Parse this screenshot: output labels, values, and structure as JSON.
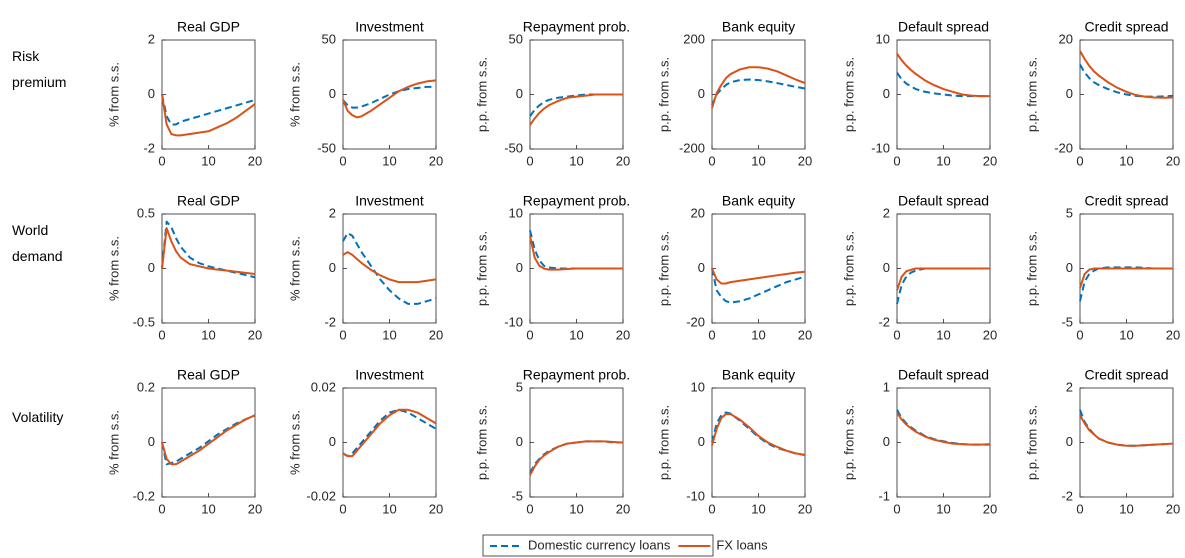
{
  "row_labels": [
    [
      "Risk",
      "premium"
    ],
    [
      "World",
      "demand"
    ],
    [
      "Volatility"
    ]
  ],
  "legend": [
    {
      "name": "Domestic currency loans",
      "color": "#0072bd",
      "dash": true
    },
    {
      "name": "FX loans",
      "color": "#d95319",
      "dash": false
    }
  ],
  "chart_data": [
    {
      "type": "line",
      "title": "Real GDP",
      "ylabel": "% from s.s.",
      "x": [
        0,
        1,
        2,
        3,
        4,
        6,
        8,
        10,
        12,
        14,
        16,
        18,
        20
      ],
      "xlim": [
        0,
        20
      ],
      "xticks": [
        0,
        10,
        20
      ],
      "ylim": [
        -2,
        2
      ],
      "yticks": [
        -2,
        0,
        2
      ],
      "series": [
        {
          "values": [
            0,
            -0.8,
            -1.1,
            -1.1,
            -1.0,
            -0.9,
            -0.8,
            -0.7,
            -0.6,
            -0.5,
            -0.4,
            -0.3,
            -0.2
          ]
        },
        {
          "values": [
            0,
            -1.1,
            -1.45,
            -1.5,
            -1.5,
            -1.45,
            -1.4,
            -1.35,
            -1.2,
            -1.05,
            -0.85,
            -0.6,
            -0.35
          ]
        }
      ]
    },
    {
      "type": "line",
      "title": "Investment",
      "ylabel": "% from s.s.",
      "x": [
        0,
        1,
        2,
        3,
        4,
        6,
        8,
        10,
        12,
        14,
        16,
        18,
        20
      ],
      "xlim": [
        0,
        20
      ],
      "xticks": [
        0,
        10,
        20
      ],
      "ylim": [
        -50,
        50
      ],
      "yticks": [
        -50,
        0,
        50
      ],
      "series": [
        {
          "values": [
            -5,
            -10,
            -12,
            -12,
            -11,
            -8,
            -4,
            0,
            3,
            5,
            6,
            7,
            7
          ]
        },
        {
          "values": [
            -5,
            -15,
            -19,
            -21,
            -20,
            -15,
            -9,
            -3,
            3,
            7,
            10,
            12,
            13
          ]
        }
      ]
    },
    {
      "type": "line",
      "title": "Repayment prob.",
      "ylabel": "p.p. from s.s.",
      "x": [
        0,
        1,
        2,
        3,
        4,
        6,
        8,
        10,
        12,
        14,
        16,
        18,
        20
      ],
      "xlim": [
        0,
        20
      ],
      "xticks": [
        0,
        10,
        20
      ],
      "ylim": [
        -50,
        50
      ],
      "yticks": [
        -50,
        0,
        50
      ],
      "series": [
        {
          "values": [
            -20,
            -14,
            -10,
            -7,
            -5,
            -3,
            -2,
            -1,
            0,
            0,
            0,
            0,
            0
          ]
        },
        {
          "values": [
            -28,
            -22,
            -17,
            -13,
            -10,
            -6,
            -3,
            -2,
            -1,
            0,
            0,
            0,
            0
          ]
        }
      ]
    },
    {
      "type": "line",
      "title": "Bank equity",
      "ylabel": "p.p. from s.s.",
      "x": [
        0,
        1,
        2,
        3,
        4,
        6,
        8,
        10,
        12,
        14,
        16,
        18,
        20
      ],
      "xlim": [
        0,
        20
      ],
      "xticks": [
        0,
        10,
        20
      ],
      "ylim": [
        -200,
        200
      ],
      "yticks": [
        -200,
        0,
        200
      ],
      "series": [
        {
          "values": [
            -40,
            0,
            20,
            35,
            45,
            53,
            55,
            53,
            48,
            42,
            35,
            28,
            22
          ]
        },
        {
          "values": [
            -50,
            5,
            35,
            60,
            75,
            92,
            100,
            100,
            95,
            85,
            70,
            55,
            42
          ]
        }
      ]
    },
    {
      "type": "line",
      "title": "Default spread",
      "ylabel": "p.p. from s.s.",
      "x": [
        0,
        1,
        2,
        3,
        4,
        6,
        8,
        10,
        12,
        14,
        16,
        18,
        20
      ],
      "xlim": [
        0,
        20
      ],
      "xticks": [
        0,
        10,
        20
      ],
      "ylim": [
        -10,
        10
      ],
      "yticks": [
        -10,
        0,
        10
      ],
      "series": [
        {
          "values": [
            4,
            2.8,
            2,
            1.5,
            1,
            0.5,
            0.2,
            0,
            -0.2,
            -0.3,
            -0.3,
            -0.3,
            -0.3
          ]
        },
        {
          "values": [
            7.5,
            6.3,
            5.3,
            4.5,
            3.8,
            2.6,
            1.7,
            1,
            0.5,
            0,
            -0.2,
            -0.3,
            -0.3
          ]
        }
      ]
    },
    {
      "type": "line",
      "title": "Credit spread",
      "ylabel": "p.p. from s.s.",
      "x": [
        0,
        1,
        2,
        3,
        4,
        6,
        8,
        10,
        12,
        14,
        16,
        18,
        20
      ],
      "xlim": [
        0,
        20
      ],
      "xticks": [
        0,
        10,
        20
      ],
      "ylim": [
        -20,
        20
      ],
      "yticks": [
        -20,
        0,
        20
      ],
      "series": [
        {
          "values": [
            11,
            8,
            6,
            4.5,
            3.5,
            2,
            0.8,
            0,
            -0.5,
            -0.8,
            -0.8,
            -0.7,
            -0.5
          ]
        },
        {
          "values": [
            16,
            13,
            10.5,
            8.5,
            7,
            4.5,
            2.5,
            1,
            -0.2,
            -0.8,
            -1.1,
            -1.2,
            -1.1
          ]
        }
      ]
    },
    {
      "type": "line",
      "title": "Real GDP",
      "ylabel": "% from s.s.",
      "x": [
        0,
        1,
        2,
        3,
        4,
        6,
        8,
        10,
        12,
        14,
        16,
        18,
        20
      ],
      "xlim": [
        0,
        20
      ],
      "xticks": [
        0,
        10,
        20
      ],
      "ylim": [
        -0.5,
        0.5
      ],
      "yticks": [
        -0.5,
        0,
        0.5
      ],
      "series": [
        {
          "values": [
            0,
            0.43,
            0.38,
            0.28,
            0.2,
            0.1,
            0.05,
            0.02,
            0,
            -0.02,
            -0.04,
            -0.06,
            -0.08
          ]
        },
        {
          "values": [
            0,
            0.37,
            0.25,
            0.16,
            0.1,
            0.04,
            0.02,
            0,
            -0.01,
            -0.02,
            -0.03,
            -0.04,
            -0.05
          ]
        }
      ]
    },
    {
      "type": "line",
      "title": "Investment",
      "ylabel": "% from s.s.",
      "x": [
        0,
        1,
        2,
        3,
        4,
        6,
        8,
        10,
        12,
        14,
        16,
        18,
        20
      ],
      "xlim": [
        0,
        20
      ],
      "xticks": [
        0,
        10,
        20
      ],
      "ylim": [
        -2,
        2
      ],
      "yticks": [
        -2,
        0,
        2
      ],
      "series": [
        {
          "values": [
            1,
            1.3,
            1.2,
            0.9,
            0.6,
            0.1,
            -0.4,
            -0.8,
            -1.1,
            -1.3,
            -1.3,
            -1.2,
            -1.1
          ]
        },
        {
          "values": [
            0.5,
            0.6,
            0.5,
            0.35,
            0.2,
            -0.05,
            -0.25,
            -0.4,
            -0.5,
            -0.5,
            -0.5,
            -0.45,
            -0.4
          ]
        }
      ]
    },
    {
      "type": "line",
      "title": "Repayment prob.",
      "ylabel": "p.p. from s.s.",
      "x": [
        0,
        1,
        2,
        3,
        4,
        6,
        8,
        10,
        12,
        14,
        16,
        18,
        20
      ],
      "xlim": [
        0,
        20
      ],
      "xticks": [
        0,
        10,
        20
      ],
      "ylim": [
        -10,
        10
      ],
      "yticks": [
        -10,
        0,
        10
      ],
      "series": [
        {
          "values": [
            7,
            3.5,
            1.5,
            0.5,
            0.2,
            0,
            0,
            0,
            0,
            0,
            0,
            0,
            0
          ]
        },
        {
          "values": [
            6,
            2,
            0.5,
            0,
            -0.2,
            -0.2,
            -0.1,
            0,
            0,
            0,
            0,
            0,
            0
          ]
        }
      ]
    },
    {
      "type": "line",
      "title": "Bank equity",
      "ylabel": "p.p. from s.s.",
      "x": [
        0,
        1,
        2,
        3,
        4,
        6,
        8,
        10,
        12,
        14,
        16,
        18,
        20
      ],
      "xlim": [
        0,
        20
      ],
      "xticks": [
        0,
        10,
        20
      ],
      "ylim": [
        -20,
        20
      ],
      "yticks": [
        -20,
        0,
        20
      ],
      "series": [
        {
          "values": [
            0,
            -8,
            -10.5,
            -12,
            -12.5,
            -12,
            -11,
            -9.5,
            -8,
            -6.5,
            -5,
            -4,
            -3
          ]
        },
        {
          "values": [
            0,
            -4,
            -5.5,
            -5.5,
            -5,
            -4.5,
            -4,
            -3.5,
            -3,
            -2.5,
            -2,
            -1.5,
            -1.2
          ]
        }
      ]
    },
    {
      "type": "line",
      "title": "Default spread",
      "ylabel": "p.p. from s.s.",
      "x": [
        0,
        1,
        2,
        3,
        4,
        6,
        8,
        10,
        12,
        14,
        16,
        18,
        20
      ],
      "xlim": [
        0,
        20
      ],
      "xticks": [
        0,
        10,
        20
      ],
      "ylim": [
        -2,
        2
      ],
      "yticks": [
        -2,
        0,
        2
      ],
      "series": [
        {
          "values": [
            -1.3,
            -0.6,
            -0.3,
            -0.15,
            -0.08,
            0,
            0,
            0,
            0,
            0,
            0,
            0,
            0
          ]
        },
        {
          "values": [
            -0.8,
            -0.3,
            -0.1,
            -0.05,
            0,
            0,
            0,
            0,
            0,
            0,
            0,
            0,
            0
          ]
        }
      ]
    },
    {
      "type": "line",
      "title": "Credit spread",
      "ylabel": "p.p. from s.s.",
      "x": [
        0,
        1,
        2,
        3,
        4,
        6,
        8,
        10,
        12,
        14,
        16,
        18,
        20
      ],
      "xlim": [
        0,
        20
      ],
      "xticks": [
        0,
        10,
        20
      ],
      "ylim": [
        -5,
        5
      ],
      "yticks": [
        -5,
        0,
        5
      ],
      "series": [
        {
          "values": [
            -3,
            -1.2,
            -0.5,
            -0.2,
            0,
            0.1,
            0.1,
            0.1,
            0.1,
            0.05,
            0,
            0,
            0
          ]
        },
        {
          "values": [
            -1.8,
            -0.5,
            -0.1,
            0,
            0,
            0,
            0,
            0,
            0,
            0,
            0,
            0,
            0
          ]
        }
      ]
    },
    {
      "type": "line",
      "title": "Real GDP",
      "ylabel": "% from s.s.",
      "x": [
        0,
        1,
        2,
        3,
        4,
        6,
        8,
        10,
        12,
        14,
        16,
        18,
        20
      ],
      "xlim": [
        0,
        20
      ],
      "xticks": [
        0,
        10,
        20
      ],
      "ylim": [
        -0.2,
        0.2
      ],
      "yticks": [
        -0.2,
        0,
        0.2
      ],
      "series": [
        {
          "values": [
            0,
            -0.08,
            -0.075,
            -0.07,
            -0.06,
            -0.04,
            -0.02,
            0.005,
            0.03,
            0.05,
            0.07,
            0.085,
            0.1
          ]
        },
        {
          "values": [
            0,
            -0.06,
            -0.08,
            -0.08,
            -0.07,
            -0.05,
            -0.03,
            -0.005,
            0.02,
            0.045,
            0.065,
            0.085,
            0.1
          ]
        }
      ]
    },
    {
      "type": "line",
      "title": "Investment",
      "ylabel": "% from s.s.",
      "x": [
        0,
        1,
        2,
        3,
        4,
        6,
        8,
        10,
        12,
        14,
        16,
        18,
        20
      ],
      "xlim": [
        0,
        20
      ],
      "xticks": [
        0,
        10,
        20
      ],
      "ylim": [
        -0.02,
        0.02
      ],
      "yticks": [
        -0.02,
        0,
        0.02
      ],
      "series": [
        {
          "values": [
            -0.004,
            -0.005,
            -0.004,
            -0.002,
            0,
            0.004,
            0.008,
            0.011,
            0.012,
            0.011,
            0.009,
            0.007,
            0.005
          ]
        },
        {
          "values": [
            -0.004,
            -0.005,
            -0.005,
            -0.003,
            -0.001,
            0.003,
            0.007,
            0.01,
            0.012,
            0.012,
            0.011,
            0.009,
            0.007
          ]
        }
      ]
    },
    {
      "type": "line",
      "title": "Repayment prob.",
      "ylabel": "p.p. from s.s.",
      "x": [
        0,
        1,
        2,
        3,
        4,
        6,
        8,
        10,
        12,
        14,
        16,
        18,
        20
      ],
      "xlim": [
        0,
        20
      ],
      "xticks": [
        0,
        10,
        20
      ],
      "ylim": [
        -5,
        5
      ],
      "yticks": [
        -5,
        0,
        5
      ],
      "series": [
        {
          "values": [
            -2.8,
            -2,
            -1.5,
            -1.1,
            -0.8,
            -0.4,
            -0.1,
            0,
            0.1,
            0.1,
            0.1,
            0,
            0
          ]
        },
        {
          "values": [
            -3,
            -2.2,
            -1.6,
            -1.2,
            -0.9,
            -0.4,
            -0.1,
            0,
            0.1,
            0.1,
            0.1,
            0.05,
            0
          ]
        }
      ]
    },
    {
      "type": "line",
      "title": "Bank equity",
      "ylabel": "p.p. from s.s.",
      "x": [
        0,
        1,
        2,
        3,
        4,
        6,
        8,
        10,
        12,
        14,
        16,
        18,
        20
      ],
      "xlim": [
        0,
        20
      ],
      "xticks": [
        0,
        10,
        20
      ],
      "ylim": [
        -10,
        10
      ],
      "yticks": [
        -10,
        0,
        10
      ],
      "series": [
        {
          "values": [
            0,
            3.5,
            5,
            5.5,
            5.3,
            4,
            2.5,
            1,
            -0.2,
            -1,
            -1.5,
            -2,
            -2.3
          ]
        },
        {
          "values": [
            -0.5,
            2.5,
            4.5,
            5.2,
            5.2,
            4.2,
            2.8,
            1.2,
            0,
            -0.8,
            -1.5,
            -2,
            -2.3
          ]
        }
      ]
    },
    {
      "type": "line",
      "title": "Default spread",
      "ylabel": "p.p. from s.s.",
      "x": [
        0,
        1,
        2,
        3,
        4,
        6,
        8,
        10,
        12,
        14,
        16,
        18,
        20
      ],
      "xlim": [
        0,
        20
      ],
      "xticks": [
        0,
        10,
        20
      ],
      "ylim": [
        -1,
        1
      ],
      "yticks": [
        -1,
        0,
        1
      ],
      "series": [
        {
          "values": [
            0.6,
            0.45,
            0.35,
            0.28,
            0.22,
            0.12,
            0.06,
            0.02,
            -0.01,
            -0.03,
            -0.04,
            -0.04,
            -0.04
          ]
        },
        {
          "values": [
            0.55,
            0.42,
            0.33,
            0.26,
            0.2,
            0.11,
            0.05,
            0.01,
            -0.02,
            -0.03,
            -0.04,
            -0.04,
            -0.03
          ]
        }
      ]
    },
    {
      "type": "line",
      "title": "Credit spread",
      "ylabel": "p.p. from s.s.",
      "x": [
        0,
        1,
        2,
        3,
        4,
        6,
        8,
        10,
        12,
        14,
        16,
        18,
        20
      ],
      "xlim": [
        0,
        20
      ],
      "xticks": [
        0,
        10,
        20
      ],
      "ylim": [
        -2,
        2
      ],
      "yticks": [
        -2,
        0,
        2
      ],
      "series": [
        {
          "values": [
            1.2,
            0.75,
            0.5,
            0.3,
            0.15,
            0,
            -0.08,
            -0.12,
            -0.12,
            -0.1,
            -0.08,
            -0.06,
            -0.05
          ]
        },
        {
          "values": [
            1.0,
            0.7,
            0.45,
            0.3,
            0.15,
            0,
            -0.08,
            -0.12,
            -0.12,
            -0.1,
            -0.08,
            -0.06,
            -0.04
          ]
        }
      ]
    }
  ]
}
